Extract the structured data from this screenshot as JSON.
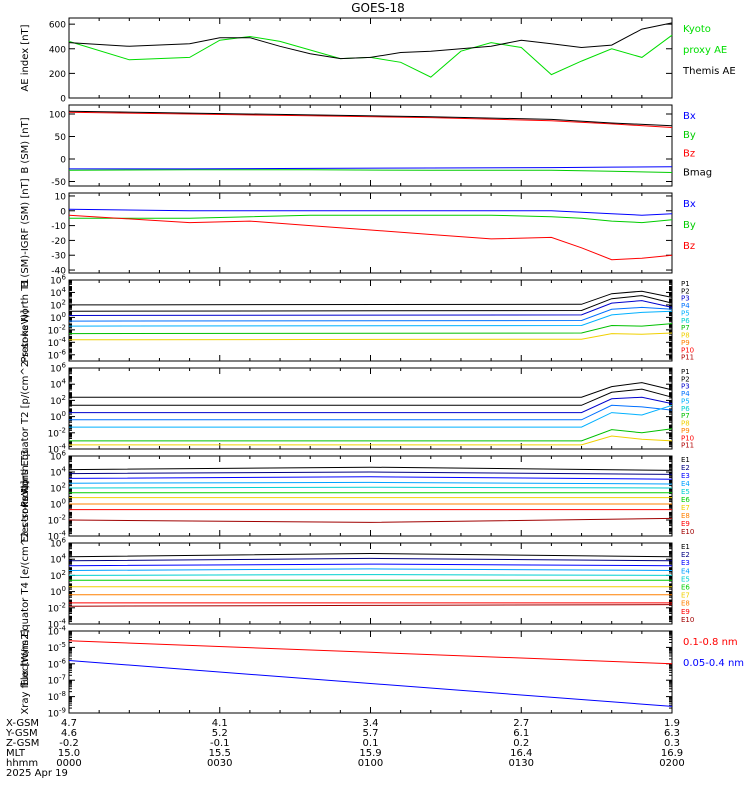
{
  "title": "GOES-18",
  "chart_data": [
    {
      "type": "line",
      "panel": "AE index",
      "ylabel": "AE index [nT]",
      "ylim": [
        0,
        650
      ],
      "yticks": [
        "0",
        "200",
        "400",
        "600"
      ],
      "legend": [
        {
          "text": "Kyoto",
          "color": "#00dd00"
        },
        {
          "text": "proxy AE",
          "color": "#00dd00"
        },
        {
          "text": "Themis AE",
          "color": "#000000"
        }
      ],
      "x": [
        0,
        0.1,
        0.2,
        0.25,
        0.3,
        0.35,
        0.4,
        0.45,
        0.5,
        0.55,
        0.6,
        0.65,
        0.7,
        0.75,
        0.8,
        0.85,
        0.9,
        0.95,
        1
      ],
      "series": [
        {
          "name": "Kyoto proxy AE",
          "color": "#00dd00",
          "values": [
            460,
            310,
            330,
            470,
            500,
            460,
            390,
            320,
            330,
            290,
            170,
            380,
            450,
            410,
            190,
            300,
            400,
            330,
            510
          ]
        },
        {
          "name": "Themis AE",
          "color": "#000000",
          "values": [
            450,
            420,
            440,
            490,
            490,
            420,
            360,
            320,
            330,
            370,
            380,
            400,
            420,
            470,
            440,
            410,
            430,
            560,
            610
          ]
        }
      ]
    },
    {
      "type": "line",
      "panel": "B (SM)",
      "ylabel": "B (SM) [nT]",
      "ylim": [
        -60,
        120
      ],
      "yticks": [
        "-50",
        "0",
        "50",
        "100"
      ],
      "legend": [
        {
          "text": "Bx",
          "color": "#0000ff"
        },
        {
          "text": "By",
          "color": "#00cc00"
        },
        {
          "text": "Bz",
          "color": "#ff0000"
        },
        {
          "text": "Bmag",
          "color": "#000000"
        }
      ],
      "x": [
        0,
        0.2,
        0.4,
        0.6,
        0.8,
        0.9,
        1
      ],
      "series": [
        {
          "name": "Bz",
          "color": "#ff0000",
          "values": [
            104,
            100,
            96,
            92,
            85,
            78,
            70
          ]
        },
        {
          "name": "Bmag",
          "color": "#000000",
          "values": [
            106,
            102,
            98,
            94,
            88,
            80,
            74
          ]
        },
        {
          "name": "By",
          "color": "#00cc00",
          "values": [
            -25,
            -24,
            -24,
            -25,
            -25,
            -27,
            -30
          ]
        },
        {
          "name": "Bx",
          "color": "#0000ff",
          "values": [
            -22,
            -22,
            -21,
            -20,
            -19,
            -18,
            -17
          ]
        }
      ]
    },
    {
      "type": "line",
      "panel": "B (SM)-IGRF (SM)",
      "ylabel": "B (SM)-IGRF (SM) [nT]",
      "ylim": [
        -42,
        12
      ],
      "yticks": [
        "-40",
        "-30",
        "-20",
        "-10",
        "0",
        "10"
      ],
      "legend": [
        {
          "text": "Bx",
          "color": "#0000ff"
        },
        {
          "text": "By",
          "color": "#00cc00"
        },
        {
          "text": "Bz",
          "color": "#ff0000"
        }
      ],
      "x": [
        0,
        0.2,
        0.3,
        0.4,
        0.5,
        0.6,
        0.7,
        0.8,
        0.85,
        0.9,
        0.95,
        1
      ],
      "series": [
        {
          "name": "Bx",
          "color": "#0000ff",
          "values": [
            1,
            0,
            0,
            0,
            0,
            0,
            0,
            0,
            -1,
            -2,
            -3,
            -2
          ]
        },
        {
          "name": "By",
          "color": "#00cc00",
          "values": [
            -5,
            -5,
            -4,
            -3,
            -3,
            -3,
            -3,
            -4,
            -5,
            -7,
            -8,
            -6
          ]
        },
        {
          "name": "Bz",
          "color": "#ff0000",
          "values": [
            -3,
            -8,
            -7,
            -10,
            -13,
            -16,
            -19,
            -18,
            -25,
            -33,
            -32,
            -30
          ]
        }
      ]
    },
    {
      "type": "line",
      "panel": "Protons North T1",
      "ylabel": "Protons North T1",
      "yscale": "log",
      "ylim": [
        -7,
        6
      ],
      "yticks": [
        "10^6",
        "10^4",
        "10^2",
        "10^0",
        "10^-2",
        "10^-4",
        "10^-6"
      ],
      "channel_labels": [
        "P1",
        "P2",
        "P3",
        "P4",
        "P5",
        "P6",
        "P7",
        "P8",
        "P9",
        "P10",
        "P11"
      ],
      "channel_colors": [
        "#000000",
        "#000000",
        "#0000cc",
        "#0070ff",
        "#00b0ff",
        "#00d0d0",
        "#00c000",
        "#f0d000",
        "#ff8000",
        "#ff0000",
        "#b00000"
      ],
      "x": [
        0,
        0.85,
        0.9,
        0.95,
        1
      ],
      "series": [
        {
          "name": "P1",
          "color": "#000000",
          "values": [
            2,
            2.1,
            3.8,
            4.2,
            3.2
          ]
        },
        {
          "name": "P2",
          "color": "#000000",
          "values": [
            1,
            1.1,
            3,
            3.5,
            2.3
          ]
        },
        {
          "name": "P3",
          "color": "#0000cc",
          "values": [
            0.3,
            0.4,
            2.3,
            2.7,
            1.6
          ]
        },
        {
          "name": "P4",
          "color": "#0070ff",
          "values": [
            -0.6,
            -0.5,
            1.3,
            1.6,
            1.3
          ]
        },
        {
          "name": "P5",
          "color": "#00b0ff",
          "values": [
            -1.4,
            -1.3,
            0.4,
            0.8,
            1.0
          ]
        },
        {
          "name": "P6",
          "color": "#00c000",
          "values": [
            -2.6,
            -2.5,
            -1.3,
            -1.4,
            -1.0
          ]
        },
        {
          "name": "P7",
          "color": "#f0d000",
          "values": [
            -3.6,
            -3.5,
            -2.6,
            -2.7,
            -2.5
          ]
        }
      ]
    },
    {
      "type": "line",
      "panel": "Protons Equator T2",
      "ylabel": "Protons Equator T2 [p/(cm^2-s-sr-keV)]",
      "yscale": "log",
      "ylim": [
        -4,
        6
      ],
      "yticks": [
        "10^6",
        "10^4",
        "10^2",
        "10^0",
        "10^-2",
        "10^-4"
      ],
      "channel_labels": [
        "P1",
        "P2",
        "P3",
        "P4",
        "P5",
        "P6",
        "P7",
        "P8",
        "P9",
        "P10",
        "P11"
      ],
      "channel_colors": [
        "#000000",
        "#000000",
        "#0000cc",
        "#0070ff",
        "#00b0ff",
        "#00d0d0",
        "#00c000",
        "#f0d000",
        "#ff8000",
        "#ff0000",
        "#b00000"
      ],
      "x": [
        0,
        0.85,
        0.9,
        0.95,
        1
      ],
      "series": [
        {
          "name": "P1",
          "color": "#000000",
          "values": [
            2.4,
            2.4,
            3.7,
            4.2,
            3.3
          ]
        },
        {
          "name": "P2",
          "color": "#000000",
          "values": [
            1.4,
            1.4,
            3.0,
            3.4,
            2.4
          ]
        },
        {
          "name": "P3",
          "color": "#0000cc",
          "values": [
            0.5,
            0.5,
            2.2,
            2.4,
            1.6
          ]
        },
        {
          "name": "P4",
          "color": "#0070ff",
          "values": [
            -0.4,
            -0.4,
            1.4,
            1.2,
            0.8
          ]
        },
        {
          "name": "P5",
          "color": "#00b0ff",
          "values": [
            -1.3,
            -1.3,
            0.5,
            0.2,
            1.4
          ]
        },
        {
          "name": "P6",
          "color": "#00c000",
          "values": [
            -3.0,
            -3.0,
            -1.6,
            -2.0,
            -1.5
          ]
        },
        {
          "name": "P7",
          "color": "#f0d000",
          "values": [
            -3.5,
            -3.5,
            -2.4,
            -2.8,
            -3.0
          ]
        }
      ]
    },
    {
      "type": "line",
      "panel": "Electrons North T3",
      "ylabel": "Electrons North T3",
      "yscale": "log",
      "ylim": [
        -4,
        6
      ],
      "yticks": [
        "10^6",
        "10^4",
        "10^2",
        "10^0",
        "10^-2",
        "10^-4"
      ],
      "channel_labels": [
        "E1",
        "E2",
        "E3",
        "E4",
        "E5",
        "E6",
        "E7",
        "E8",
        "E9",
        "E10"
      ],
      "channel_colors": [
        "#000000",
        "#000080",
        "#0000ff",
        "#00a0ff",
        "#00d0d0",
        "#00d000",
        "#f0d000",
        "#ff8000",
        "#ff0000",
        "#a00000"
      ],
      "x": [
        0,
        0.5,
        1
      ],
      "series": [
        {
          "name": "E1",
          "color": "#000000",
          "values": [
            4.3,
            4.6,
            4.2
          ]
        },
        {
          "name": "E2",
          "color": "#000080",
          "values": [
            3.8,
            4.0,
            3.7
          ]
        },
        {
          "name": "E3",
          "color": "#0000ff",
          "values": [
            3.2,
            3.4,
            3.1
          ]
        },
        {
          "name": "E4",
          "color": "#00a0ff",
          "values": [
            2.6,
            2.7,
            2.5
          ]
        },
        {
          "name": "E5",
          "color": "#00d0d0",
          "values": [
            2.0,
            2.1,
            2.0
          ]
        },
        {
          "name": "E6",
          "color": "#00d000",
          "values": [
            1.4,
            1.4,
            1.4
          ]
        },
        {
          "name": "E7",
          "color": "#f0d000",
          "values": [
            0.8,
            0.8,
            0.8
          ]
        },
        {
          "name": "E8",
          "color": "#ff8000",
          "values": [
            0,
            0,
            0
          ]
        },
        {
          "name": "E9",
          "color": "#ff0000",
          "values": [
            -0.7,
            -0.7,
            -0.7
          ]
        },
        {
          "name": "E10",
          "color": "#a00000",
          "values": [
            -2.0,
            -2.3,
            -1.8
          ]
        }
      ]
    },
    {
      "type": "line",
      "panel": "Electrons Equator T4",
      "ylabel": "Electrons Equator T4 [e/(cm^2-s-sr-keV)]",
      "yscale": "log",
      "ylim": [
        -4,
        6
      ],
      "yticks": [
        "10^6",
        "10^4",
        "10^2",
        "10^0",
        "10^-2",
        "10^-4"
      ],
      "channel_labels": [
        "E1",
        "E2",
        "E3",
        "E4",
        "E5",
        "E6",
        "E7",
        "E8",
        "E9",
        "E10"
      ],
      "channel_colors": [
        "#000000",
        "#000080",
        "#0000ff",
        "#00a0ff",
        "#00d0d0",
        "#00d000",
        "#f0d000",
        "#ff8000",
        "#ff0000",
        "#a00000"
      ],
      "x": [
        0,
        0.5,
        1
      ],
      "series": [
        {
          "name": "E1",
          "color": "#000000",
          "values": [
            4.3,
            4.7,
            4.3
          ]
        },
        {
          "name": "E2",
          "color": "#000080",
          "values": [
            3.8,
            4.1,
            3.8
          ]
        },
        {
          "name": "E3",
          "color": "#0000ff",
          "values": [
            3.2,
            3.4,
            3.2
          ]
        },
        {
          "name": "E4",
          "color": "#00a0ff",
          "values": [
            2.6,
            2.8,
            2.6
          ]
        },
        {
          "name": "E5",
          "color": "#00d0d0",
          "values": [
            2.0,
            2.1,
            2.0
          ]
        },
        {
          "name": "E6",
          "color": "#00d000",
          "values": [
            1.4,
            1.4,
            1.4
          ]
        },
        {
          "name": "E7",
          "color": "#f0d000",
          "values": [
            0.6,
            0.6,
            0.6
          ]
        },
        {
          "name": "E8",
          "color": "#ff8000",
          "values": [
            -0.4,
            -0.4,
            -0.4
          ]
        },
        {
          "name": "E9",
          "color": "#ff0000",
          "values": [
            -1.4,
            -1.4,
            -1.4
          ]
        },
        {
          "name": "E10",
          "color": "#a00000",
          "values": [
            -1.8,
            -1.7,
            -1.6
          ]
        }
      ]
    },
    {
      "type": "line",
      "panel": "Xray flux",
      "ylabel": "Xray flux [W/m2]",
      "yscale": "log",
      "ylim": [
        -9,
        -4
      ],
      "yticks": [
        "10^-4",
        "10^-5",
        "10^-6",
        "10^-7",
        "10^-8",
        "10^-9"
      ],
      "legend": [
        {
          "text": "0.1-0.8 nm",
          "color": "#ff0000"
        },
        {
          "text": "0.05-0.4 nm",
          "color": "#0000ff"
        }
      ],
      "x": [
        0,
        0.5,
        1
      ],
      "series": [
        {
          "name": "0.1-0.8 nm",
          "color": "#ff0000",
          "values": [
            -4.6,
            -5.3,
            -6.0
          ]
        },
        {
          "name": "0.05-0.4 nm",
          "color": "#0000ff",
          "values": [
            -5.8,
            -7.2,
            -8.6
          ]
        }
      ]
    }
  ],
  "x_axis": {
    "row_labels": [
      "X-GSM",
      "Y-GSM",
      "Z-GSM",
      "MLT",
      "hhmm"
    ],
    "date": "2025 Apr 19",
    "columns": [
      {
        "values": [
          "4.7",
          "4.6",
          "-0.2",
          "15.0",
          "0000"
        ]
      },
      {
        "values": [
          "4.1",
          "5.2",
          "-0.1",
          "15.5",
          "0030"
        ]
      },
      {
        "values": [
          "3.4",
          "5.7",
          "0.1",
          "15.9",
          "0100"
        ]
      },
      {
        "values": [
          "2.7",
          "6.1",
          "0.2",
          "16.4",
          "0130"
        ]
      },
      {
        "values": [
          "1.9",
          "6.3",
          "0.3",
          "16.9",
          "0200"
        ]
      }
    ]
  }
}
